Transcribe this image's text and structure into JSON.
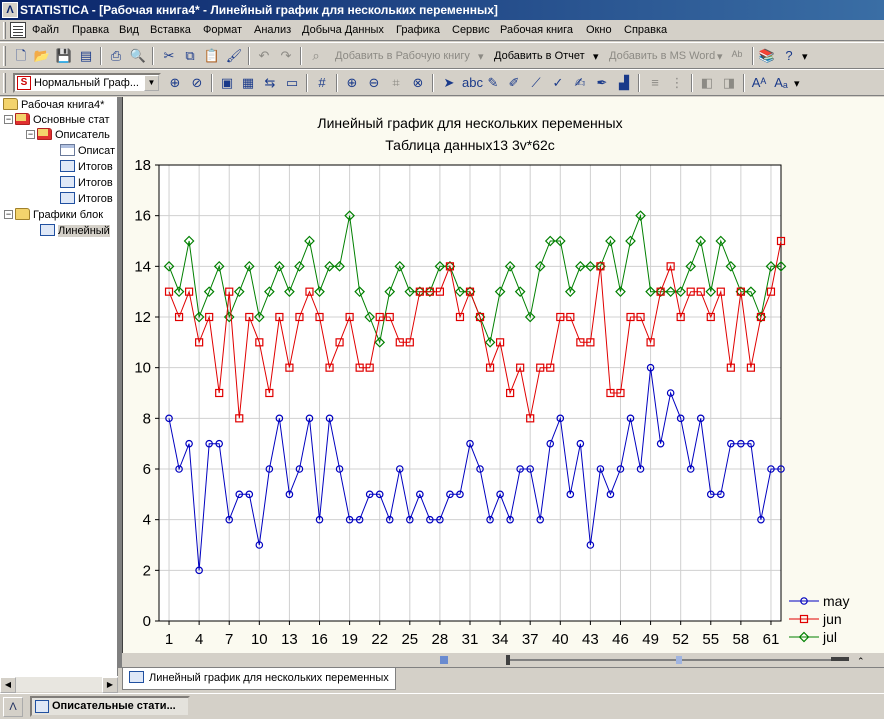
{
  "window": {
    "title": "STATISTICA - [Рабочая книга4* - Линейный график для нескольких переменных]"
  },
  "menu": [
    "Файл",
    "Правка",
    "Вид",
    "Вставка",
    "Формат",
    "Анализ",
    "Добыча Данных",
    "Графика",
    "Сервис",
    "Рабочая книга",
    "Окно",
    "Справка"
  ],
  "toolbar1": {
    "add_workbook": "Добавить в Рабочую книгу",
    "add_report": "Добавить в Отчет",
    "add_msword": "Добавить в MS Word"
  },
  "toolbar2": {
    "style_combo": "Нормальный Граф..."
  },
  "tree": {
    "root": "Рабочая книга4*",
    "basic_stats": "Основные стат",
    "descriptive": "Описатель",
    "item_desc": "Описат",
    "itog1": "Итогов",
    "itog2": "Итогов",
    "itog3": "Итогов",
    "block_graphs": "Графики блок",
    "linear": "Линейный"
  },
  "tab": {
    "label": "Линейный график для нескольких переменных"
  },
  "taskbar": {
    "item": "Описательные стати..."
  },
  "chart_data": {
    "type": "line",
    "title": "Линейный график для нескольких переменных",
    "subtitle": "Таблица данных13 3v*62c",
    "xlabel": "",
    "ylabel": "",
    "ylim": [
      0,
      18
    ],
    "yticks": [
      0,
      2,
      4,
      6,
      8,
      10,
      12,
      14,
      16,
      18
    ],
    "xlim": [
      0,
      62
    ],
    "xticks": [
      1,
      4,
      7,
      10,
      13,
      16,
      19,
      22,
      25,
      28,
      31,
      34,
      37,
      40,
      43,
      46,
      49,
      52,
      55,
      58,
      61
    ],
    "grid": true,
    "legend": "bottom-right",
    "series": [
      {
        "name": "may",
        "color": "#0000c0",
        "marker": "circle",
        "values": [
          8,
          6,
          7,
          2,
          7,
          7,
          4,
          5,
          5,
          3,
          6,
          8,
          5,
          6,
          8,
          4,
          8,
          6,
          4,
          4,
          5,
          5,
          4,
          6,
          4,
          5,
          4,
          4,
          5,
          5,
          7,
          6,
          4,
          5,
          4,
          6,
          6,
          4,
          7,
          8,
          5,
          7,
          3,
          6,
          5,
          6,
          8,
          6,
          10,
          7,
          9,
          8,
          6,
          8,
          5,
          5,
          7,
          7,
          7,
          4,
          6,
          6
        ]
      },
      {
        "name": "jun",
        "color": "#e00000",
        "marker": "square",
        "values": [
          13,
          12,
          13,
          11,
          12,
          9,
          13,
          8,
          12,
          11,
          9,
          12,
          10,
          12,
          13,
          12,
          10,
          11,
          12,
          10,
          10,
          12,
          12,
          11,
          11,
          13,
          13,
          13,
          14,
          12,
          13,
          12,
          10,
          11,
          9,
          10,
          8,
          10,
          10,
          12,
          12,
          11,
          11,
          14,
          9,
          9,
          12,
          12,
          11,
          13,
          14,
          12,
          13,
          13,
          12,
          13,
          10,
          13,
          10,
          12,
          13,
          15
        ]
      },
      {
        "name": "jul",
        "color": "#008000",
        "marker": "diamond",
        "values": [
          14,
          13,
          15,
          12,
          13,
          14,
          12,
          13,
          14,
          12,
          13,
          14,
          13,
          14,
          15,
          13,
          14,
          14,
          16,
          13,
          12,
          11,
          13,
          14,
          13,
          13,
          13,
          14,
          14,
          13,
          13,
          12,
          11,
          13,
          14,
          13,
          12,
          14,
          15,
          15,
          13,
          14,
          14,
          14,
          15,
          13,
          15,
          16,
          13,
          13,
          13,
          13,
          14,
          15,
          13,
          15,
          14,
          13,
          13,
          12,
          14,
          14
        ]
      }
    ]
  }
}
